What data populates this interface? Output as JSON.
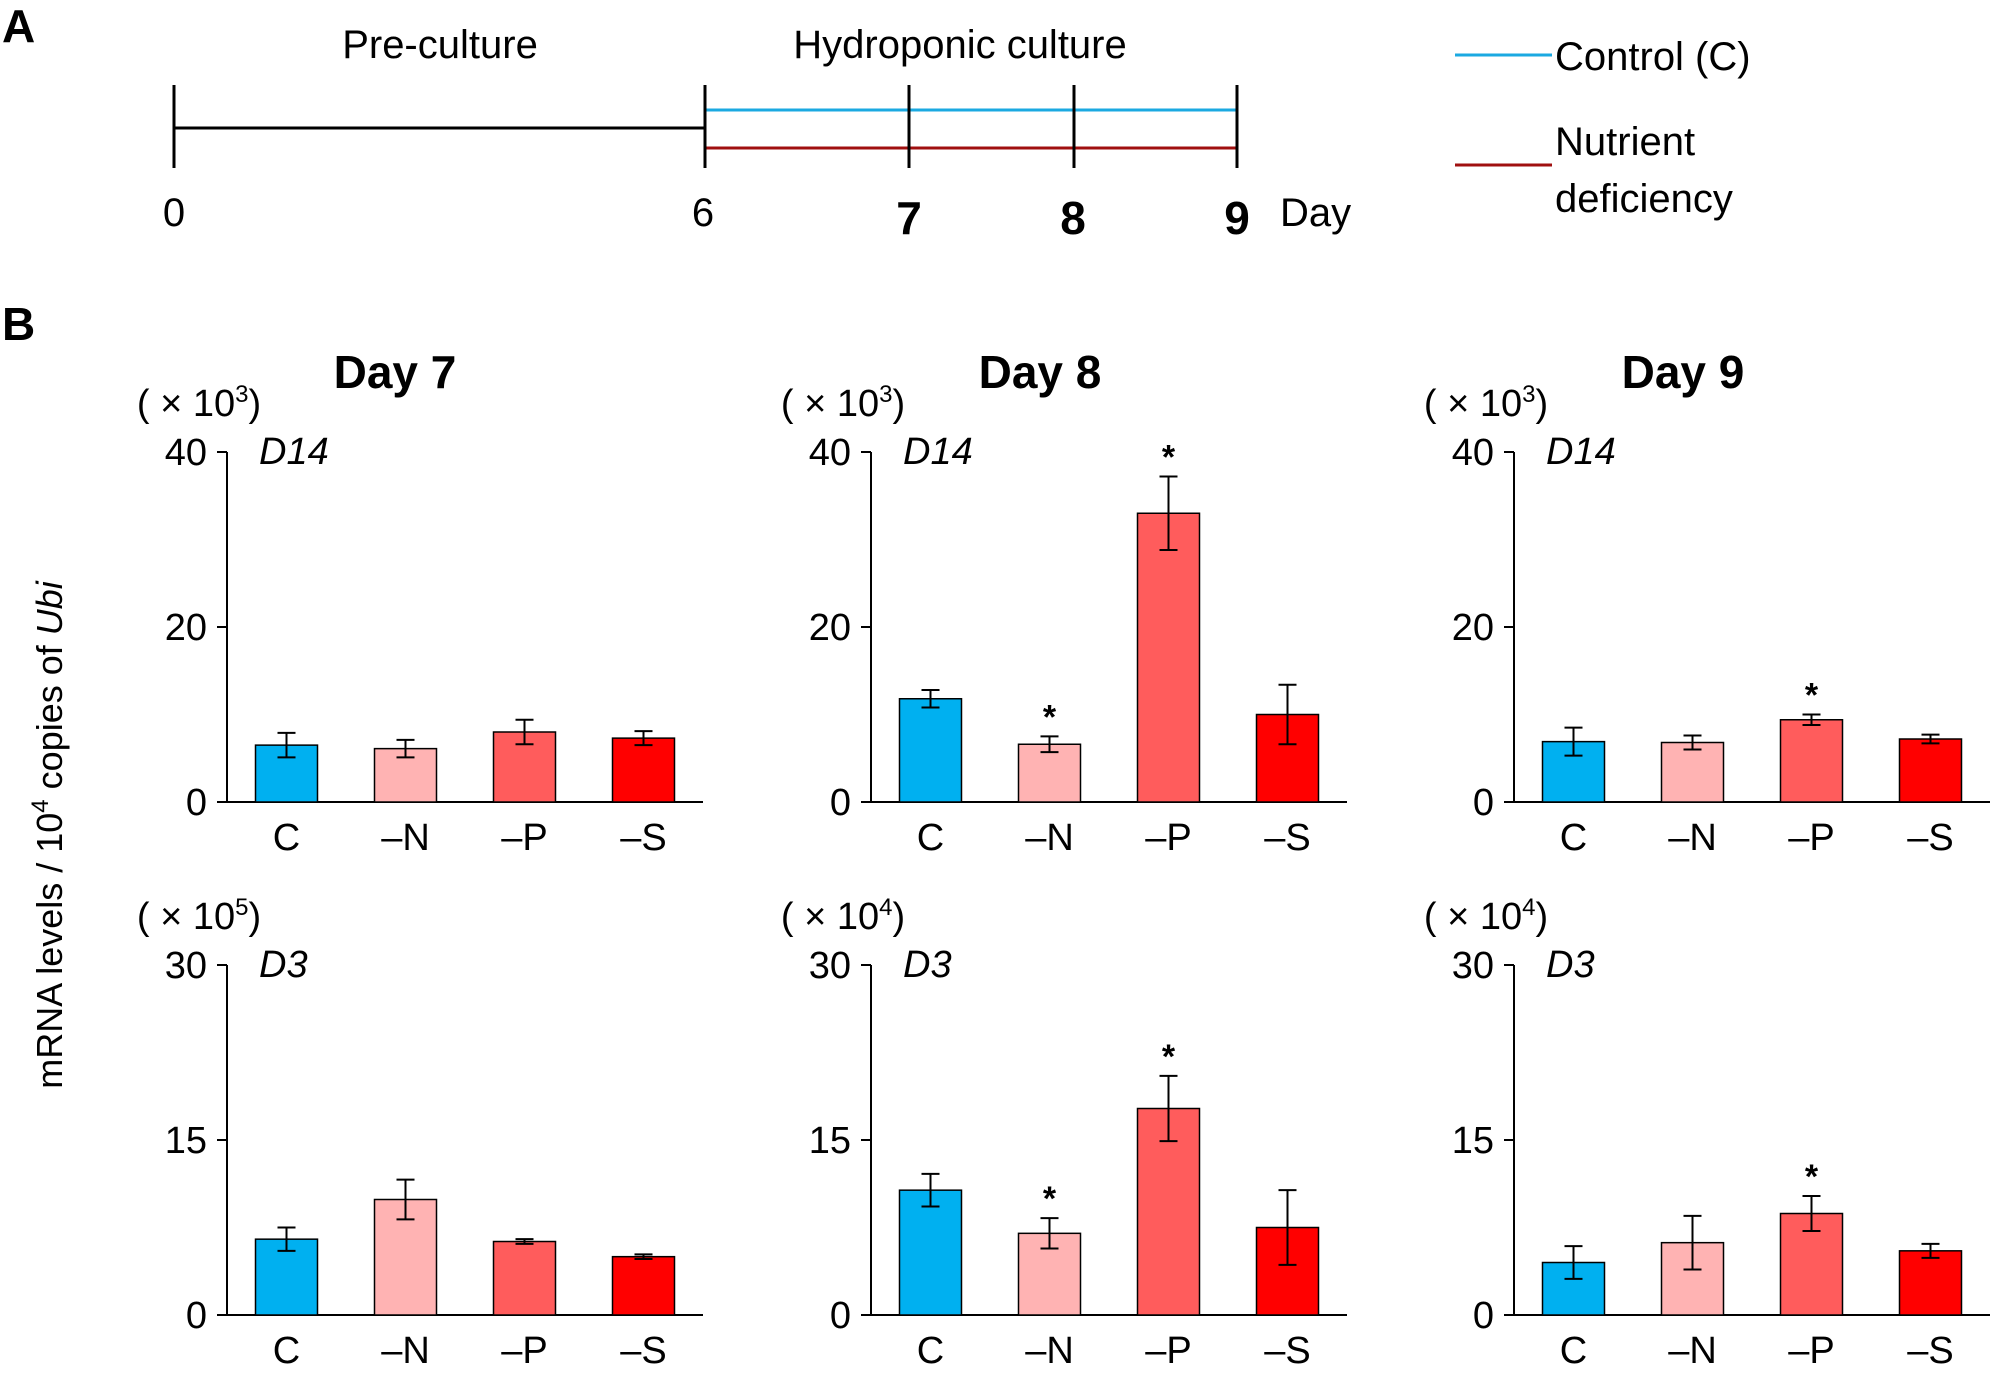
{
  "panel_a": {
    "letter": "A",
    "pre_label": "Pre-culture",
    "hydro_label": "Hydroponic culture",
    "ticks": {
      "day0": "0",
      "day6": "6",
      "day7": "7",
      "day8": "8",
      "day9": "9"
    },
    "day_unit": "Day",
    "legend": {
      "control_label": "Control (C)",
      "deficiency_line1": "Nutrient",
      "deficiency_line2": "deficiency"
    },
    "colors": {
      "control": "#1ba9e1",
      "deficiency": "#a01010",
      "pre": "#000000"
    }
  },
  "panel_b": {
    "letter": "B",
    "ylabel_pre": "mRNA levels / 10",
    "ylabel_sup": "4",
    "ylabel_mid": " copies of ",
    "ylabel_gene": "Ubi",
    "titles": {
      "day7": "Day 7",
      "day8": "Day 8",
      "day9": "Day 9"
    },
    "colors": {
      "C": "#00b0f0",
      "-N": "#ffb3b3",
      "-P": "#ff5c5c",
      "-S": "#ff0000"
    }
  },
  "chart_data": [
    {
      "type": "bar",
      "title": "Day 7",
      "gene": "D14",
      "unit_prefix": "( × 10",
      "unit_exp": "3",
      "unit_suffix": ")",
      "categories": [
        "C",
        "–N",
        "–P",
        "–S"
      ],
      "values": [
        6.5,
        6.1,
        8.0,
        7.3
      ],
      "errors": [
        1.4,
        1.0,
        1.4,
        0.8
      ],
      "significant": [
        false,
        false,
        false,
        false
      ],
      "ylim": [
        0,
        40
      ],
      "yticks": [
        "0",
        "20",
        "40"
      ]
    },
    {
      "type": "bar",
      "title": "Day 8",
      "gene": "D14",
      "unit_prefix": "( × 10",
      "unit_exp": "3",
      "unit_suffix": ")",
      "categories": [
        "C",
        "–N",
        "–P",
        "–S"
      ],
      "values": [
        11.8,
        6.6,
        33.0,
        10.0
      ],
      "errors": [
        1.0,
        0.9,
        4.2,
        3.4
      ],
      "significant": [
        false,
        true,
        true,
        false
      ],
      "ylim": [
        0,
        40
      ],
      "yticks": [
        "0",
        "20",
        "40"
      ]
    },
    {
      "type": "bar",
      "title": "Day 9",
      "gene": "D14",
      "unit_prefix": "( × 10",
      "unit_exp": "3",
      "unit_suffix": ")",
      "categories": [
        "C",
        "–N",
        "–P",
        "–S"
      ],
      "values": [
        6.9,
        6.8,
        9.4,
        7.2
      ],
      "errors": [
        1.6,
        0.8,
        0.6,
        0.5
      ],
      "significant": [
        false,
        false,
        true,
        false
      ],
      "ylim": [
        0,
        40
      ],
      "yticks": [
        "0",
        "20",
        "40"
      ]
    },
    {
      "type": "bar",
      "title": "Day 7",
      "gene": "D3",
      "unit_prefix": "( × 10",
      "unit_exp": "5",
      "unit_suffix": ")",
      "categories": [
        "C",
        "–N",
        "–P",
        "–S"
      ],
      "values": [
        6.5,
        9.9,
        6.3,
        5.0
      ],
      "errors": [
        1.0,
        1.7,
        0.2,
        0.2
      ],
      "significant": [
        false,
        false,
        false,
        false
      ],
      "ylim": [
        0,
        30
      ],
      "yticks": [
        "0",
        "15",
        "30"
      ]
    },
    {
      "type": "bar",
      "title": "Day 8",
      "gene": "D3",
      "unit_prefix": "( × 10",
      "unit_exp": "4",
      "unit_suffix": ")",
      "categories": [
        "C",
        "–N",
        "–P",
        "–S"
      ],
      "values": [
        10.7,
        7.0,
        17.7,
        7.5
      ],
      "errors": [
        1.4,
        1.3,
        2.8,
        3.2
      ],
      "significant": [
        false,
        true,
        true,
        false
      ],
      "ylim": [
        0,
        30
      ],
      "yticks": [
        "0",
        "15",
        "30"
      ]
    },
    {
      "type": "bar",
      "title": "Day 9",
      "gene": "D3",
      "unit_prefix": "( × 10",
      "unit_exp": "4",
      "unit_suffix": ")",
      "categories": [
        "C",
        "–N",
        "–P",
        "–S"
      ],
      "values": [
        4.5,
        6.2,
        8.7,
        5.5
      ],
      "errors": [
        1.4,
        2.3,
        1.5,
        0.6
      ],
      "significant": [
        false,
        false,
        true,
        false
      ],
      "ylim": [
        0,
        30
      ],
      "yticks": [
        "0",
        "15",
        "30"
      ]
    }
  ]
}
